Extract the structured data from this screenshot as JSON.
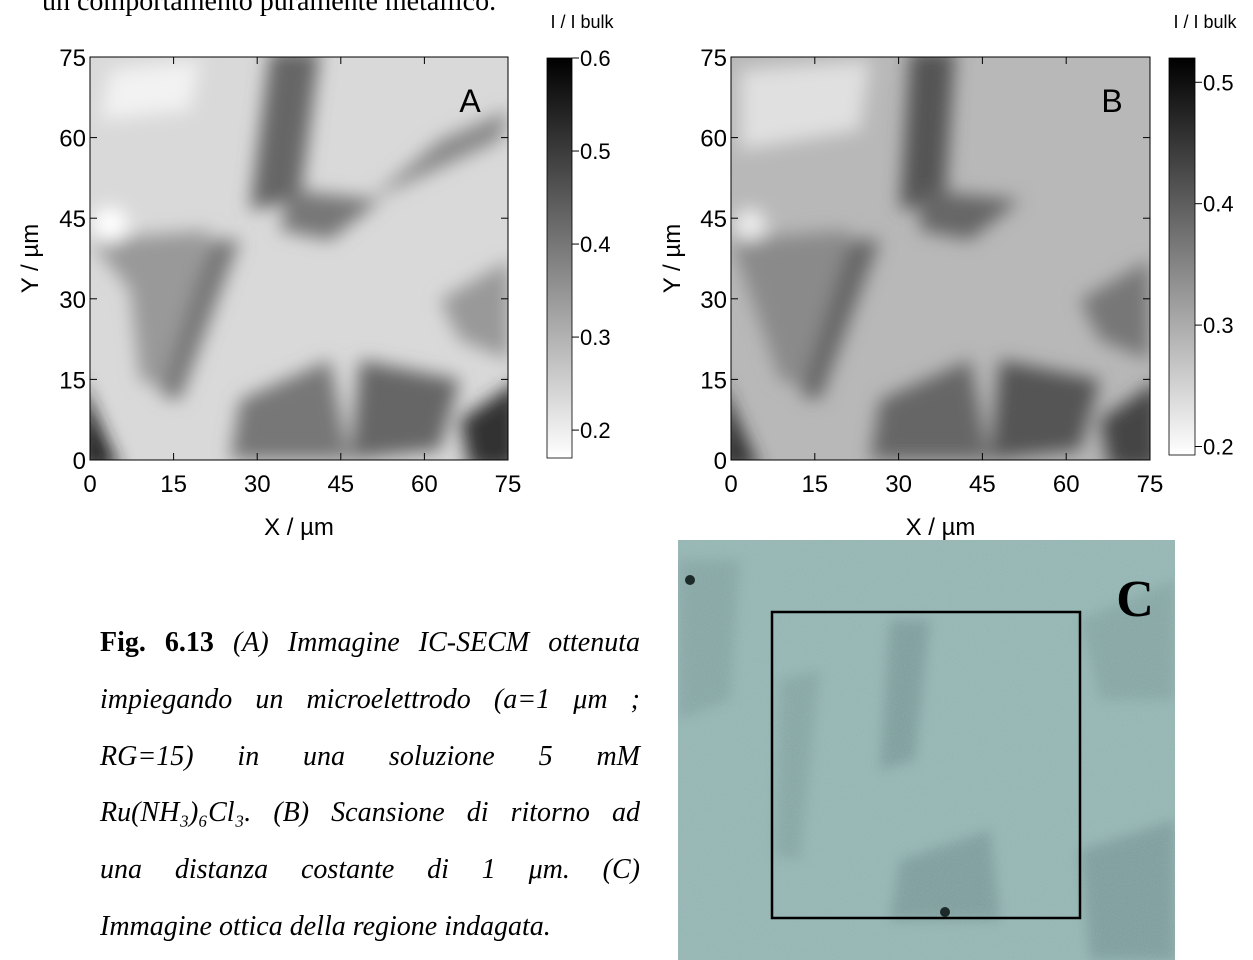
{
  "top_text": "un comportamento puramente metallico.",
  "panels": [
    {
      "label": "A",
      "x_label": "X / µm",
      "y_label": "Y / µm",
      "xlim": [
        0,
        75
      ],
      "ylim": [
        0,
        75
      ],
      "xticks": [
        0,
        15,
        30,
        45,
        60,
        75
      ],
      "yticks": [
        0,
        15,
        30,
        45,
        60,
        75
      ],
      "colorbar": {
        "title": "I / I bulk",
        "lim": [
          0.17,
          0.6
        ],
        "ticks": [
          0.2,
          0.3,
          0.4,
          0.5,
          0.6
        ]
      }
    },
    {
      "label": "B",
      "x_label": "X / µm",
      "y_label": "Y / µm",
      "xlim": [
        0,
        75
      ],
      "ylim": [
        0,
        75
      ],
      "xticks": [
        0,
        15,
        30,
        45,
        60,
        75
      ],
      "yticks": [
        0,
        15,
        30,
        45,
        60,
        75
      ],
      "colorbar": {
        "title": "I / I bulk",
        "lim": [
          0.193,
          0.52
        ],
        "ticks": [
          0.2,
          0.3,
          0.4,
          0.5
        ]
      }
    }
  ],
  "photo_label": "C",
  "caption": {
    "fig": "Fig. 6.13",
    "lines": [
      "(A) Immagine IC-SECM ottenuta",
      "impiegando un microelettrodo (a=1 μm ;",
      "RG=15) in una soluzione 5 mM",
      "Ru(NH₃)₆Cl₃. (B) Scansione di ritorno ad",
      "una distanza costante di 1 μm. (C)",
      "Immagine ottica della regione indagata."
    ]
  }
}
